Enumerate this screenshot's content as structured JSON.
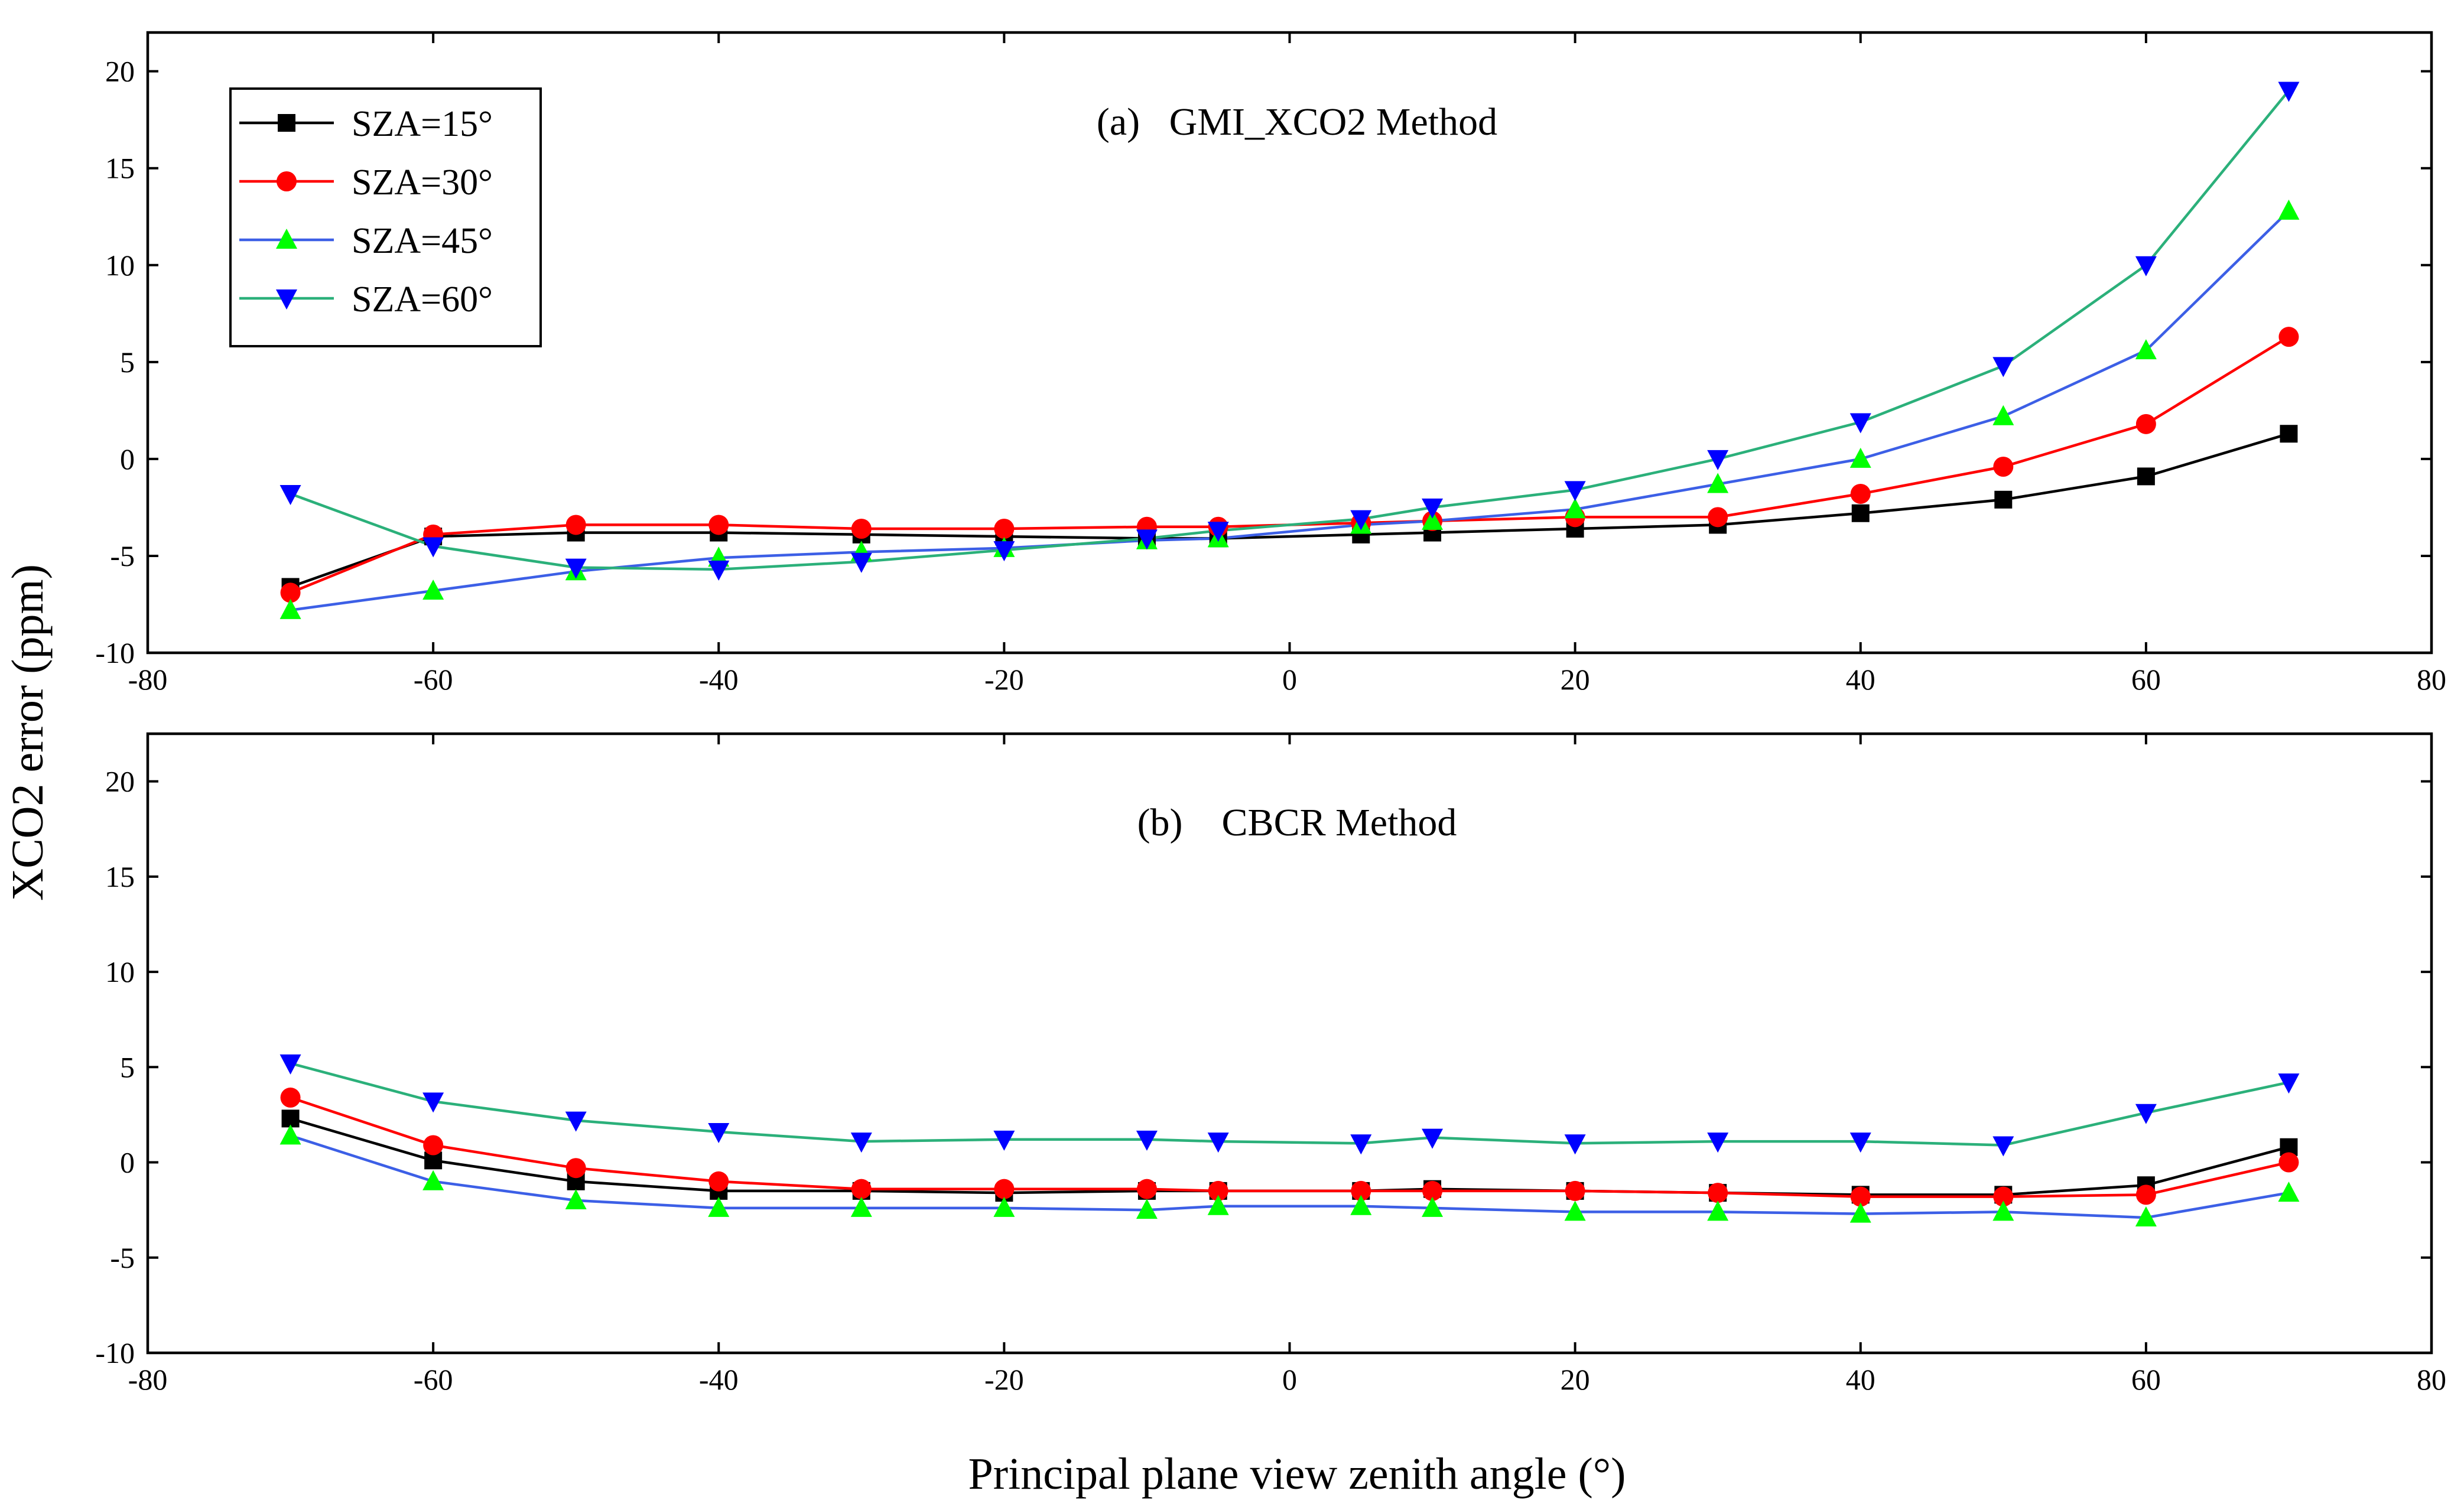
{
  "figure": {
    "ylabel": "XCO2 error (ppm)",
    "xlabel": "Principal plane view zenith angle (°)"
  },
  "legend": [
    {
      "label": "SZA=15°",
      "color": "#000000",
      "marker": "square",
      "fill": "#000000"
    },
    {
      "label": "SZA=30°",
      "color": "#ff0000",
      "marker": "circle",
      "fill": "#ff0000"
    },
    {
      "label": "SZA=45°",
      "color": "#3c5fe6",
      "marker": "triangle-up",
      "fill": "#00ff00"
    },
    {
      "label": "SZA=60°",
      "color": "#2bb07a",
      "marker": "triangle-down",
      "fill": "#0000ff"
    }
  ],
  "chart_data": [
    {
      "type": "line",
      "title": "(a)   GMI_XCO2 Method",
      "xlabel": "Principal plane view zenith angle (°)",
      "ylabel": "XCO2 error (ppm)",
      "xlim": [
        -80,
        80
      ],
      "ylim": [
        -10,
        22
      ],
      "xticks": [
        -80,
        -60,
        -40,
        -20,
        0,
        20,
        40,
        60,
        80
      ],
      "yticks": [
        -10,
        -5,
        0,
        5,
        10,
        15,
        20
      ],
      "x": [
        -70,
        -60,
        -50,
        -40,
        -30,
        -20,
        -10,
        -5,
        5,
        10,
        20,
        30,
        40,
        50,
        60,
        70
      ],
      "series": [
        {
          "name": "SZA=15°",
          "values": [
            -6.6,
            -4.0,
            -3.8,
            -3.8,
            -3.9,
            -4.0,
            -4.1,
            -4.1,
            -3.9,
            -3.8,
            -3.6,
            -3.4,
            -2.8,
            -2.1,
            -0.9,
            1.3
          ]
        },
        {
          "name": "SZA=30°",
          "values": [
            -6.9,
            -3.9,
            -3.4,
            -3.4,
            -3.6,
            -3.6,
            -3.5,
            -3.5,
            -3.3,
            -3.2,
            -3.0,
            -3.0,
            -1.8,
            -0.4,
            1.8,
            6.3
          ]
        },
        {
          "name": "SZA=45°",
          "values": [
            -7.8,
            -6.8,
            -5.8,
            -5.1,
            -4.8,
            -4.6,
            -4.2,
            -4.1,
            -3.4,
            -3.2,
            -2.6,
            -1.3,
            0.0,
            2.2,
            5.6,
            12.8
          ]
        },
        {
          "name": "SZA=60°",
          "values": [
            -1.8,
            -4.5,
            -5.6,
            -5.7,
            -5.3,
            -4.7,
            -4.1,
            -3.7,
            -3.1,
            -2.5,
            -1.6,
            0.0,
            1.9,
            4.8,
            10.0,
            19.0
          ]
        }
      ]
    },
    {
      "type": "line",
      "title": "(b)    CBCR Method",
      "xlabel": "Principal plane view zenith angle (°)",
      "ylabel": "XCO2 error (ppm)",
      "xlim": [
        -80,
        80
      ],
      "ylim": [
        -10,
        22.5
      ],
      "xticks": [
        -80,
        -60,
        -40,
        -20,
        0,
        20,
        40,
        60,
        80
      ],
      "yticks": [
        -10,
        -5,
        0,
        5,
        10,
        15,
        20
      ],
      "x": [
        -70,
        -60,
        -50,
        -40,
        -30,
        -20,
        -10,
        -5,
        5,
        10,
        20,
        30,
        40,
        50,
        60,
        70
      ],
      "series": [
        {
          "name": "SZA=15°",
          "values": [
            2.3,
            0.1,
            -1.0,
            -1.5,
            -1.5,
            -1.6,
            -1.5,
            -1.5,
            -1.5,
            -1.4,
            -1.5,
            -1.6,
            -1.7,
            -1.7,
            -1.2,
            0.8
          ]
        },
        {
          "name": "SZA=30°",
          "values": [
            3.4,
            0.9,
            -0.3,
            -1.0,
            -1.4,
            -1.4,
            -1.4,
            -1.5,
            -1.5,
            -1.5,
            -1.5,
            -1.6,
            -1.8,
            -1.8,
            -1.7,
            0.0
          ]
        },
        {
          "name": "SZA=45°",
          "values": [
            1.4,
            -1.0,
            -2.0,
            -2.4,
            -2.4,
            -2.4,
            -2.5,
            -2.3,
            -2.3,
            -2.4,
            -2.6,
            -2.6,
            -2.7,
            -2.6,
            -2.9,
            -1.6
          ]
        },
        {
          "name": "SZA=60°",
          "values": [
            5.2,
            3.2,
            2.2,
            1.6,
            1.1,
            1.2,
            1.2,
            1.1,
            1.0,
            1.3,
            1.0,
            1.1,
            1.1,
            0.9,
            2.6,
            4.2
          ]
        }
      ]
    }
  ]
}
